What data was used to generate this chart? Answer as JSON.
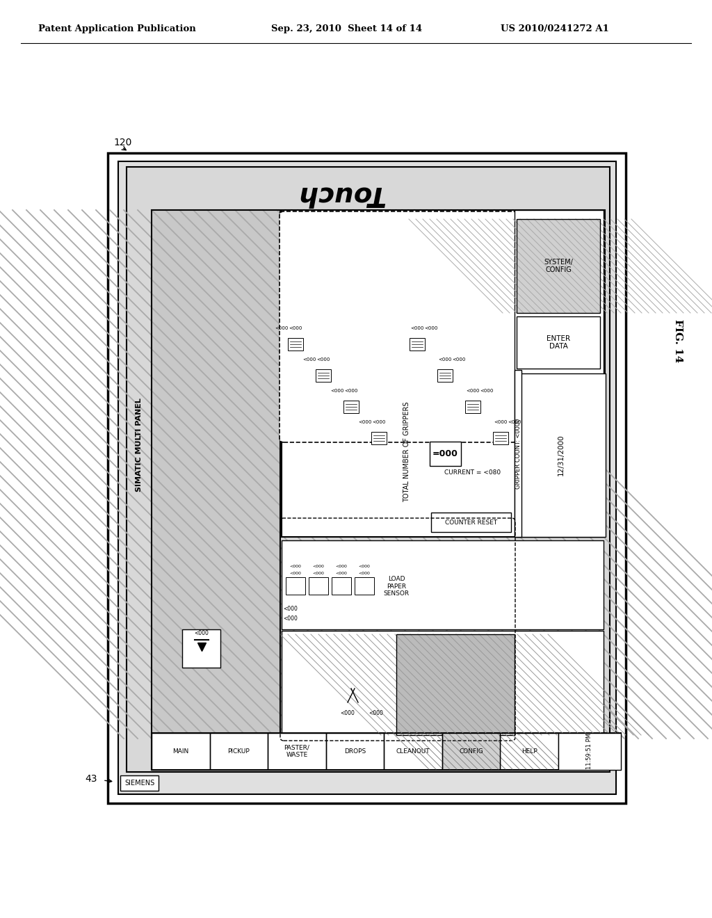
{
  "title_left": "Patent Application Publication",
  "title_mid": "Sep. 23, 2010  Sheet 14 of 14",
  "title_right": "US 2010/0241272 A1",
  "fig_label": "FIG. 14",
  "ref_120": "120",
  "ref_43": "43",
  "siemens_label": "SIEMENS",
  "simatic_label": "SIMATIC MULTI PANEL",
  "touch_label": "Touch",
  "date_label": "12/31/2000",
  "time_label": "11:59:51 PM",
  "system_config": "SYSTEM/\nCONFIG",
  "enter_data": "ENTER\nDATA",
  "total_grippers": "TOTAL NUMBER OF GRIPPERS",
  "eq000": "=000",
  "current": "CURRENT = <080",
  "counter_reset": "COUNTER RESET",
  "gripper_count": "GRIPPER COUNT: <0000",
  "load_paper_sensor": "LOAD\nPAPER\nSENSOR",
  "nav_labels": [
    "MAIN",
    "PICKUP",
    "PASTER/\nWASTE",
    "DROPS",
    "CLEANOUT",
    "CONFIG",
    "HELP"
  ],
  "bg_color": "#ffffff"
}
